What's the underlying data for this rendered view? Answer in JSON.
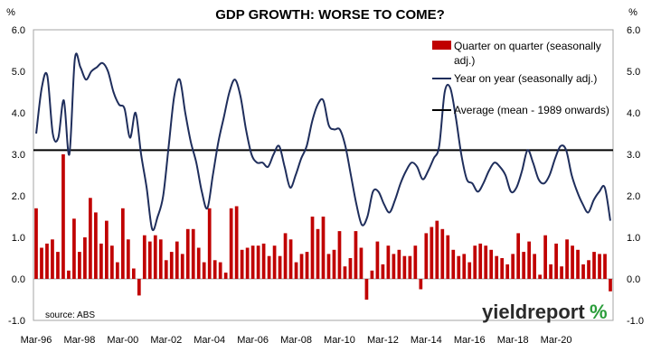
{
  "chart_data": {
    "type": "bar+line",
    "title": "GDP GROWTH: WORSE TO COME?",
    "left_unit": "%",
    "right_unit": "%",
    "ylim": [
      -1.0,
      6.0
    ],
    "y_ticks": [
      "6.0",
      "5.0",
      "4.0",
      "3.0",
      "2.0",
      "1.0",
      "0.0",
      "-1.0"
    ],
    "x_tick_labels": [
      "Mar-96",
      "Mar-98",
      "Mar-00",
      "Mar-02",
      "Mar-04",
      "Mar-06",
      "Mar-08",
      "Mar-10",
      "Mar-12",
      "Mar-14",
      "Mar-16",
      "Mar-18",
      "Mar-20"
    ],
    "average_value": 3.1,
    "source_note": "source: ABS",
    "legend": {
      "qoq": "Quarter on quarter (seasonally adj.)",
      "yoy": "Year on year (seasonally adj.)",
      "avg": "Average (mean - 1989 onwards)"
    },
    "series_qoq": [
      1.7,
      0.75,
      0.85,
      0.95,
      0.65,
      3.0,
      0.2,
      1.45,
      0.65,
      1.0,
      1.95,
      1.6,
      0.85,
      1.4,
      0.8,
      0.4,
      1.7,
      0.95,
      0.25,
      -0.4,
      1.05,
      0.9,
      1.05,
      0.95,
      0.45,
      0.65,
      0.9,
      0.6,
      1.2,
      1.2,
      0.75,
      0.4,
      1.7,
      0.45,
      0.4,
      0.15,
      1.7,
      1.75,
      0.7,
      0.75,
      0.8,
      0.8,
      0.85,
      0.55,
      0.8,
      0.55,
      1.1,
      0.95,
      0.4,
      0.6,
      0.65,
      1.5,
      1.2,
      1.5,
      0.6,
      0.7,
      1.15,
      0.3,
      0.5,
      1.15,
      0.75,
      -0.5,
      0.2,
      0.9,
      0.35,
      0.8,
      0.6,
      0.7,
      0.55,
      0.55,
      0.8,
      -0.25,
      1.1,
      1.25,
      1.4,
      1.2,
      1.05,
      0.7,
      0.55,
      0.6,
      0.4,
      0.8,
      0.85,
      0.8,
      0.7,
      0.55,
      0.5,
      0.35,
      0.6,
      1.1,
      0.65,
      0.9,
      0.6,
      0.1,
      1.05,
      0.35,
      0.85,
      0.3,
      0.95,
      0.8,
      0.7,
      0.35,
      0.45,
      0.65,
      0.6,
      0.6,
      -0.3
    ],
    "series_yoy": [
      3.5,
      4.6,
      4.9,
      3.5,
      3.4,
      4.3,
      3.0,
      5.3,
      5.1,
      4.8,
      5.0,
      5.1,
      5.2,
      5.0,
      4.5,
      4.2,
      4.1,
      3.4,
      4.0,
      3.0,
      2.2,
      1.2,
      1.5,
      2.0,
      3.2,
      4.4,
      4.8,
      4.0,
      3.3,
      2.8,
      2.1,
      1.7,
      2.5,
      3.3,
      3.9,
      4.5,
      4.8,
      4.4,
      3.6,
      3.0,
      2.8,
      2.8,
      2.7,
      3.0,
      3.2,
      2.7,
      2.2,
      2.5,
      2.9,
      3.2,
      3.8,
      4.2,
      4.3,
      3.7,
      3.6,
      3.6,
      3.2,
      2.5,
      1.8,
      1.3,
      1.5,
      2.1,
      2.1,
      1.8,
      1.6,
      1.9,
      2.3,
      2.6,
      2.8,
      2.7,
      2.4,
      2.6,
      2.9,
      3.2,
      4.5,
      4.6,
      3.9,
      3.0,
      2.4,
      2.3,
      2.1,
      2.3,
      2.6,
      2.8,
      2.7,
      2.5,
      2.1,
      2.2,
      2.6,
      3.1,
      2.8,
      2.4,
      2.3,
      2.5,
      2.9,
      3.2,
      3.1,
      2.5,
      2.1,
      1.8,
      1.6,
      1.9,
      2.1,
      2.2,
      1.4
    ]
  },
  "watermark": {
    "brand": "yieldreport",
    "symbol": "%",
    "colors": {
      "text": "#2a2a2a",
      "accent": "#2a9d3a"
    }
  },
  "colors": {
    "qoq_bar": "#c00000",
    "yoy_line": "#1f2e5c",
    "avg_line": "#000000",
    "frame": "#a6a6a6"
  }
}
